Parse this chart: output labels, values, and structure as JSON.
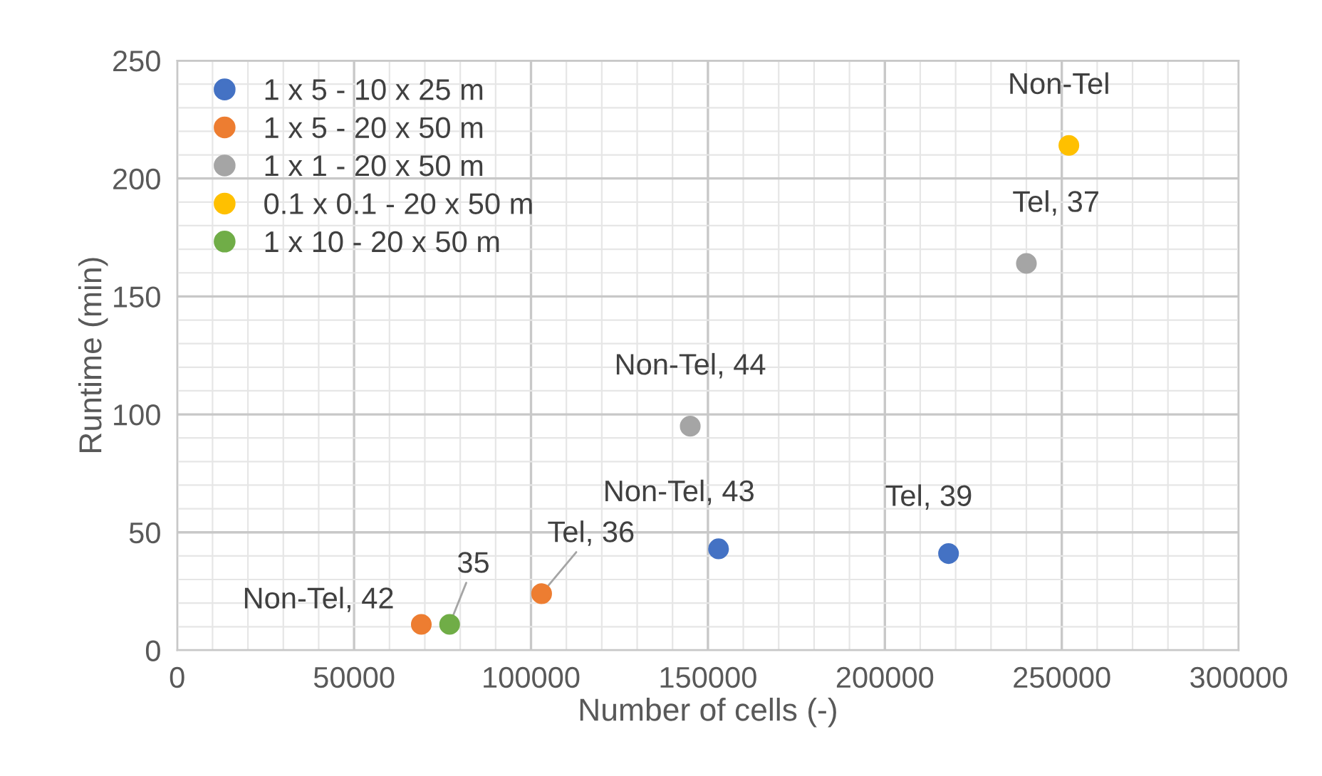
{
  "chart_data": {
    "type": "scatter",
    "xlabel": "Number of cells (-)",
    "ylabel": "Runtime (min)",
    "xlim": [
      0,
      300000
    ],
    "xticks": [
      0,
      50000,
      100000,
      150000,
      200000,
      250000,
      300000
    ],
    "ylim": [
      0,
      250
    ],
    "yticks": [
      0,
      50,
      100,
      150,
      200,
      250
    ],
    "grid": true,
    "legend": "top left",
    "marker": "circle",
    "series": [
      {
        "name": "1 x 5 - 10 x 25 m",
        "color": "#4472c4",
        "x": [
          153000,
          218000
        ],
        "values": [
          43,
          41
        ]
      },
      {
        "name": "1 x 5 - 20 x 50 m",
        "color": "#ed7d31",
        "x": [
          69000,
          103000
        ],
        "values": [
          11,
          24
        ]
      },
      {
        "name": "1 x 1 - 20 x 50 m",
        "color": "#a5a5a5",
        "x": [
          145000,
          240000
        ],
        "values": [
          95,
          164
        ]
      },
      {
        "name": "0.1 x 0.1 - 20 x 50 m",
        "color": "#ffc000",
        "x": [
          252000
        ],
        "values": [
          214
        ]
      },
      {
        "name": "1 x 10 - 20 x 50 m",
        "color": "#70ad47",
        "x": [
          77000
        ],
        "values": [
          11
        ]
      }
    ],
    "annotations": [
      {
        "text": "Non-Tel, 43",
        "x": 153000,
        "y": 43
      },
      {
        "text": "Tel, 39",
        "x": 218000,
        "y": 41
      },
      {
        "text": "Non-Tel, 42",
        "x": 69000,
        "y": 11
      },
      {
        "text": "Tel, 36",
        "x": 103000,
        "y": 24
      },
      {
        "text": "Non-Tel, 44",
        "x": 145000,
        "y": 95
      },
      {
        "text": "Tel, 37",
        "x": 240000,
        "y": 164
      },
      {
        "text": "Non-Tel",
        "x": 252000,
        "y": 214
      },
      {
        "text": "35",
        "x": 77000,
        "y": 11
      }
    ]
  }
}
